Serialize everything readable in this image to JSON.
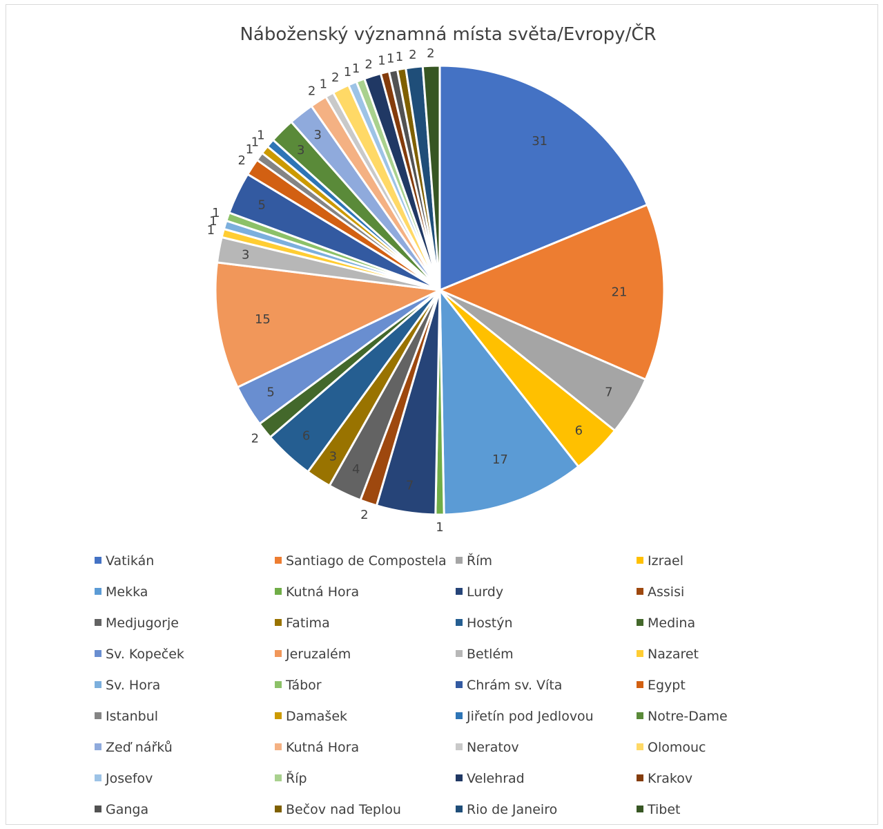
{
  "chart_data": {
    "type": "pie",
    "title": "Náboženský významná místa světa/Evropy/ČR",
    "legend_position": "bottom",
    "slices": [
      {
        "label": "Vatikán",
        "value": 31,
        "color": "#4472C4"
      },
      {
        "label": "Santiago de Compostela",
        "value": 21,
        "color": "#ED7D31"
      },
      {
        "label": "Řím",
        "value": 7,
        "color": "#A5A5A5"
      },
      {
        "label": "Izrael",
        "value": 6,
        "color": "#FFC000"
      },
      {
        "label": "Mekka",
        "value": 17,
        "color": "#5B9BD5"
      },
      {
        "label": "Kutná Hora",
        "value": 1,
        "color": "#70AD47"
      },
      {
        "label": "Lurdy",
        "value": 7,
        "color": "#264478"
      },
      {
        "label": "Assisi",
        "value": 2,
        "color": "#9E480E"
      },
      {
        "label": "Medjugorje",
        "value": 4,
        "color": "#636363"
      },
      {
        "label": "Fatima",
        "value": 3,
        "color": "#997300"
      },
      {
        "label": "Hostýn",
        "value": 6,
        "color": "#255E91"
      },
      {
        "label": "Medina",
        "value": 2,
        "color": "#43682B"
      },
      {
        "label": "Sv. Kopeček",
        "value": 5,
        "color": "#698ED0"
      },
      {
        "label": "Jeruzalém",
        "value": 15,
        "color": "#F1975A"
      },
      {
        "label": "Betlém",
        "value": 3,
        "color": "#B7B7B7"
      },
      {
        "label": "Nazaret",
        "value": 1,
        "color": "#FFCD33"
      },
      {
        "label": "Sv. Hora",
        "value": 1,
        "color": "#7CAFDD"
      },
      {
        "label": "Tábor",
        "value": 1,
        "color": "#8CC168"
      },
      {
        "label": "Chrám sv. Víta",
        "value": 5,
        "color": "#335AA1"
      },
      {
        "label": "Egypt",
        "value": 2,
        "color": "#D26012"
      },
      {
        "label": "Istanbul",
        "value": 1,
        "color": "#848484"
      },
      {
        "label": "Damašek",
        "value": 1,
        "color": "#CC9A00"
      },
      {
        "label": "Jiřetín pod Jedlovou",
        "value": 1,
        "color": "#2E75B6"
      },
      {
        "label": "Notre-Dame",
        "value": 3,
        "color": "#5A8A39"
      },
      {
        "label": "Zeď nářků",
        "value": 3,
        "color": "#8FAADC"
      },
      {
        "label": "Kutná Hora",
        "value": 2,
        "color": "#F4B183"
      },
      {
        "label": "Neratov",
        "value": 1,
        "color": "#C9C9C9"
      },
      {
        "label": "Olomouc",
        "value": 2,
        "color": "#FFD966"
      },
      {
        "label": "Josefov",
        "value": 1,
        "color": "#9DC3E6"
      },
      {
        "label": "Říp",
        "value": 1,
        "color": "#A9D18E"
      },
      {
        "label": "Velehrad",
        "value": 2,
        "color": "#203864"
      },
      {
        "label": "Krakov",
        "value": 1,
        "color": "#843C0C"
      },
      {
        "label": "Ganga",
        "value": 1,
        "color": "#525252"
      },
      {
        "label": "Bečov nad Teplou",
        "value": 1,
        "color": "#7F6000"
      },
      {
        "label": "Rio de Janeiro",
        "value": 2,
        "color": "#1F4E79"
      },
      {
        "label": "Tibet",
        "value": 2,
        "color": "#375623"
      }
    ]
  }
}
